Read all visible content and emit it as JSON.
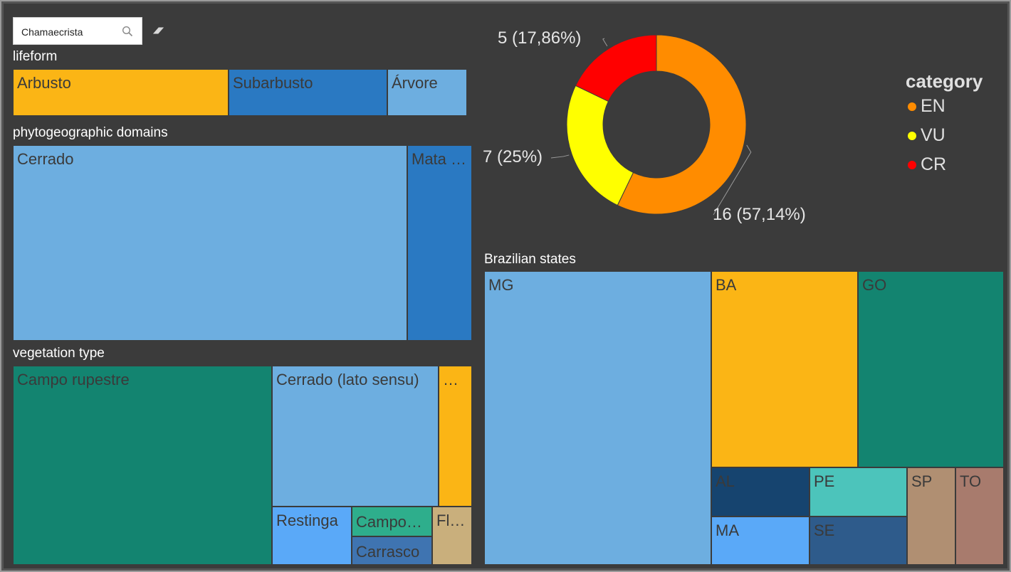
{
  "search": {
    "value": "Chamaecrista"
  },
  "lifeform": {
    "title": "lifeform",
    "tiles": [
      {
        "label": "Arbusto",
        "color": "#fbb515"
      },
      {
        "label": "Subarbusto",
        "color": "#2a79c2"
      },
      {
        "label": "Árvore",
        "color": "#6daee0"
      }
    ]
  },
  "domains": {
    "title": "phytogeographic domains",
    "tiles": [
      {
        "label": "Cerrado",
        "color": "#6daee0"
      },
      {
        "label": "Mata …",
        "color": "#2a79c2"
      }
    ]
  },
  "vegetation": {
    "title": "vegetation type",
    "tiles": [
      {
        "label": "Campo rupestre",
        "color": "#138470"
      },
      {
        "label": "Cerrado (lato sensu)",
        "color": "#6daee0"
      },
      {
        "label": "…",
        "color": "#fbb515"
      },
      {
        "label": "Restinga",
        "color": "#5aa9f8"
      },
      {
        "label": "Campo…",
        "color": "#2eae8c"
      },
      {
        "label": "Carrasco",
        "color": "#3f74b1"
      },
      {
        "label": "Fl…",
        "color": "#c9af7c"
      }
    ]
  },
  "states": {
    "title": "Brazilian states",
    "tiles": [
      {
        "label": "MG",
        "color": "#6daee0"
      },
      {
        "label": "BA",
        "color": "#fbb515"
      },
      {
        "label": "GO",
        "color": "#138470"
      },
      {
        "label": "AL",
        "color": "#16446f"
      },
      {
        "label": "PE",
        "color": "#4cc4bb"
      },
      {
        "label": "SP",
        "color": "#b08f72"
      },
      {
        "label": "TO",
        "color": "#a87b6d"
      },
      {
        "label": "MA",
        "color": "#5aa9f8"
      },
      {
        "label": "SE",
        "color": "#2e5b8b"
      }
    ]
  },
  "chart_data": {
    "type": "pie",
    "donut": true,
    "legend_title": "category",
    "legend_position": "right",
    "series": [
      {
        "name": "EN",
        "value": 16,
        "label": "16 (57,14%)",
        "color": "#ff8c00"
      },
      {
        "name": "VU",
        "value": 7,
        "label": "7 (25%)",
        "color": "#ffff00"
      },
      {
        "name": "CR",
        "value": 5,
        "label": "5 (17,86%)",
        "color": "#ff0000"
      }
    ]
  }
}
